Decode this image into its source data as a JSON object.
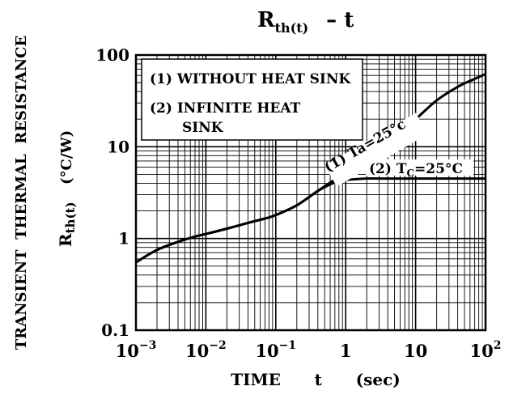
{
  "chart_data": {
    "type": "line",
    "title_main": "R",
    "title_sub": "th(t)",
    "title_rest": "–  t",
    "xlabel": "TIME      t      (sec)",
    "ylabel_main": "TRANSIENT  THERMAL  RESISTANCE",
    "ylabel_symbol_main": "R",
    "ylabel_symbol_sub": "th(t)",
    "ylabel_unit": "(°C/W)",
    "x_scale": "log",
    "y_scale": "log",
    "xlim": [
      0.001,
      100
    ],
    "ylim": [
      0.1,
      100
    ],
    "x_ticks": [
      {
        "value": 0.001,
        "base": "10",
        "exp": "−3"
      },
      {
        "value": 0.01,
        "base": "10",
        "exp": "−2"
      },
      {
        "value": 0.1,
        "base": "10",
        "exp": "−1"
      },
      {
        "value": 1,
        "base": "1",
        "exp": ""
      },
      {
        "value": 10,
        "base": "10",
        "exp": ""
      },
      {
        "value": 100,
        "base": "10",
        "exp": "2"
      }
    ],
    "y_ticks": [
      {
        "value": 0.1,
        "label": "0.1"
      },
      {
        "value": 1,
        "label": "1"
      },
      {
        "value": 10,
        "label": "10"
      },
      {
        "value": 100,
        "label": "100"
      }
    ],
    "grid": true,
    "legend": {
      "item1": "(1)  WITHOUT  HEAT  SINK",
      "item2_line1": "(2)  INFINITE  HEAT",
      "item2_line2": "SINK"
    },
    "series": [
      {
        "x": [
          0.001,
          0.002,
          0.004,
          0.007,
          0.01,
          0.02,
          0.04,
          0.07,
          0.1,
          0.2,
          0.4,
          0.7,
          1,
          2,
          4,
          7,
          10,
          20,
          40,
          70,
          100
        ],
        "y": [
          0.55,
          0.75,
          0.92,
          1.05,
          1.12,
          1.28,
          1.48,
          1.65,
          1.8,
          2.3,
          3.3,
          4.4,
          5.3,
          8.0,
          12.0,
          16.5,
          20.0,
          32.0,
          45.0,
          55.0,
          62.0
        ]
      },
      {
        "x": [
          0.001,
          0.002,
          0.004,
          0.007,
          0.01,
          0.02,
          0.04,
          0.07,
          0.1,
          0.2,
          0.4,
          0.7,
          1,
          1.5,
          2,
          4,
          10,
          100
        ],
        "y": [
          0.55,
          0.75,
          0.92,
          1.05,
          1.12,
          1.28,
          1.48,
          1.65,
          1.8,
          2.3,
          3.3,
          4.1,
          4.35,
          4.45,
          4.5,
          4.5,
          4.5,
          4.5
        ]
      }
    ],
    "annotations": {
      "curve1_prefix": "(1)  ",
      "curve1_main": "Ta=25°c",
      "curve2_prefix": "(2)  T",
      "curve2_sub": "C",
      "curve2_rest": "=25°C"
    }
  }
}
